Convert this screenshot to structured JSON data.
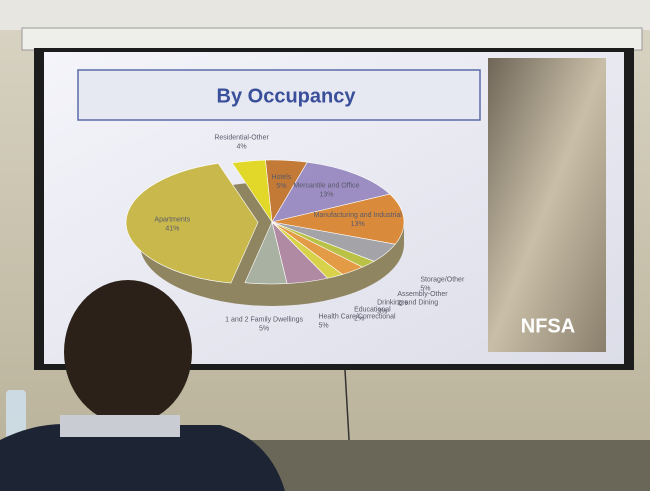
{
  "chart_data": {
    "type": "pie",
    "title": "By Occupancy",
    "categories": [
      "Hotels",
      "Mercantile and Office",
      "Manufacturing and Industrial",
      "Storage/Other",
      "Assembly-Other",
      "Drinking and Dining",
      "Educational",
      "Health Care/Correctional",
      "1 and 2 Family Dwellings",
      "Apartments",
      "Residential-Other"
    ],
    "values": [
      5,
      13,
      13,
      5,
      2,
      3,
      2,
      5,
      5,
      41,
      4
    ],
    "value_labels": [
      "5%",
      "13%",
      "13%",
      "5%",
      "2%",
      "3%",
      "2%",
      "5%",
      "5%",
      "41%",
      "4%"
    ],
    "colors": [
      "#c27a36",
      "#9c8ec2",
      "#d98a3a",
      "#a4a4a8",
      "#b9c247",
      "#e39b45",
      "#d8d24a",
      "#b08aa2",
      "#a9b2a2",
      "#c9b94c",
      "#e2d82a"
    ]
  },
  "logo": "NFSA"
}
